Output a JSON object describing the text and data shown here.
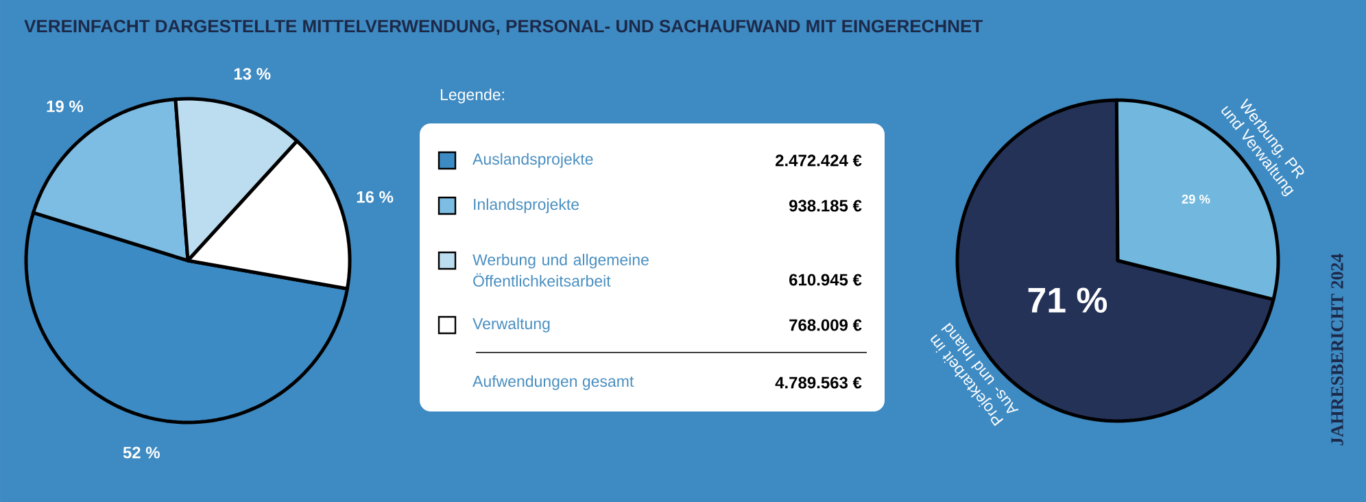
{
  "chart_data": [
    {
      "type": "pie",
      "title": "VEREINFACHT DARGESTELLTE MITTELVERWENDUNG, PERSONAL- UND SACHAUFWAND MIT EINGERECHNET",
      "categories": [
        "Auslandsprojekte",
        "Inlandsprojekte",
        "Werbung und allgemeine Öffentlichkeitsarbeit",
        "Verwaltung"
      ],
      "values": [
        52,
        19,
        13,
        16
      ],
      "colors": [
        "#3d8bc4",
        "#7dbde3",
        "#bcdcef",
        "#ffffff"
      ],
      "value_labels": [
        "52 %",
        "19 %",
        "13 %",
        "16 %"
      ],
      "legend": "right",
      "legend_title": "Legende:"
    },
    {
      "type": "other",
      "annotations": [
        "2.472.424 €",
        "938.185 €",
        "610.945 €",
        "768.009 €",
        "Aufwendungen gesamt",
        "4.789.563 €"
      ]
    },
    {
      "type": "pie",
      "categories": [
        "Projektarbeit im Aus- und Inland",
        "Werbung, PR und Verwaltung"
      ],
      "values": [
        71,
        29
      ],
      "colors": [
        "#253258",
        "#72b8de"
      ],
      "value_labels": [
        "71 %",
        "29 %"
      ],
      "annotations": [
        "JAHRESBERICHT 2024"
      ]
    }
  ]
}
